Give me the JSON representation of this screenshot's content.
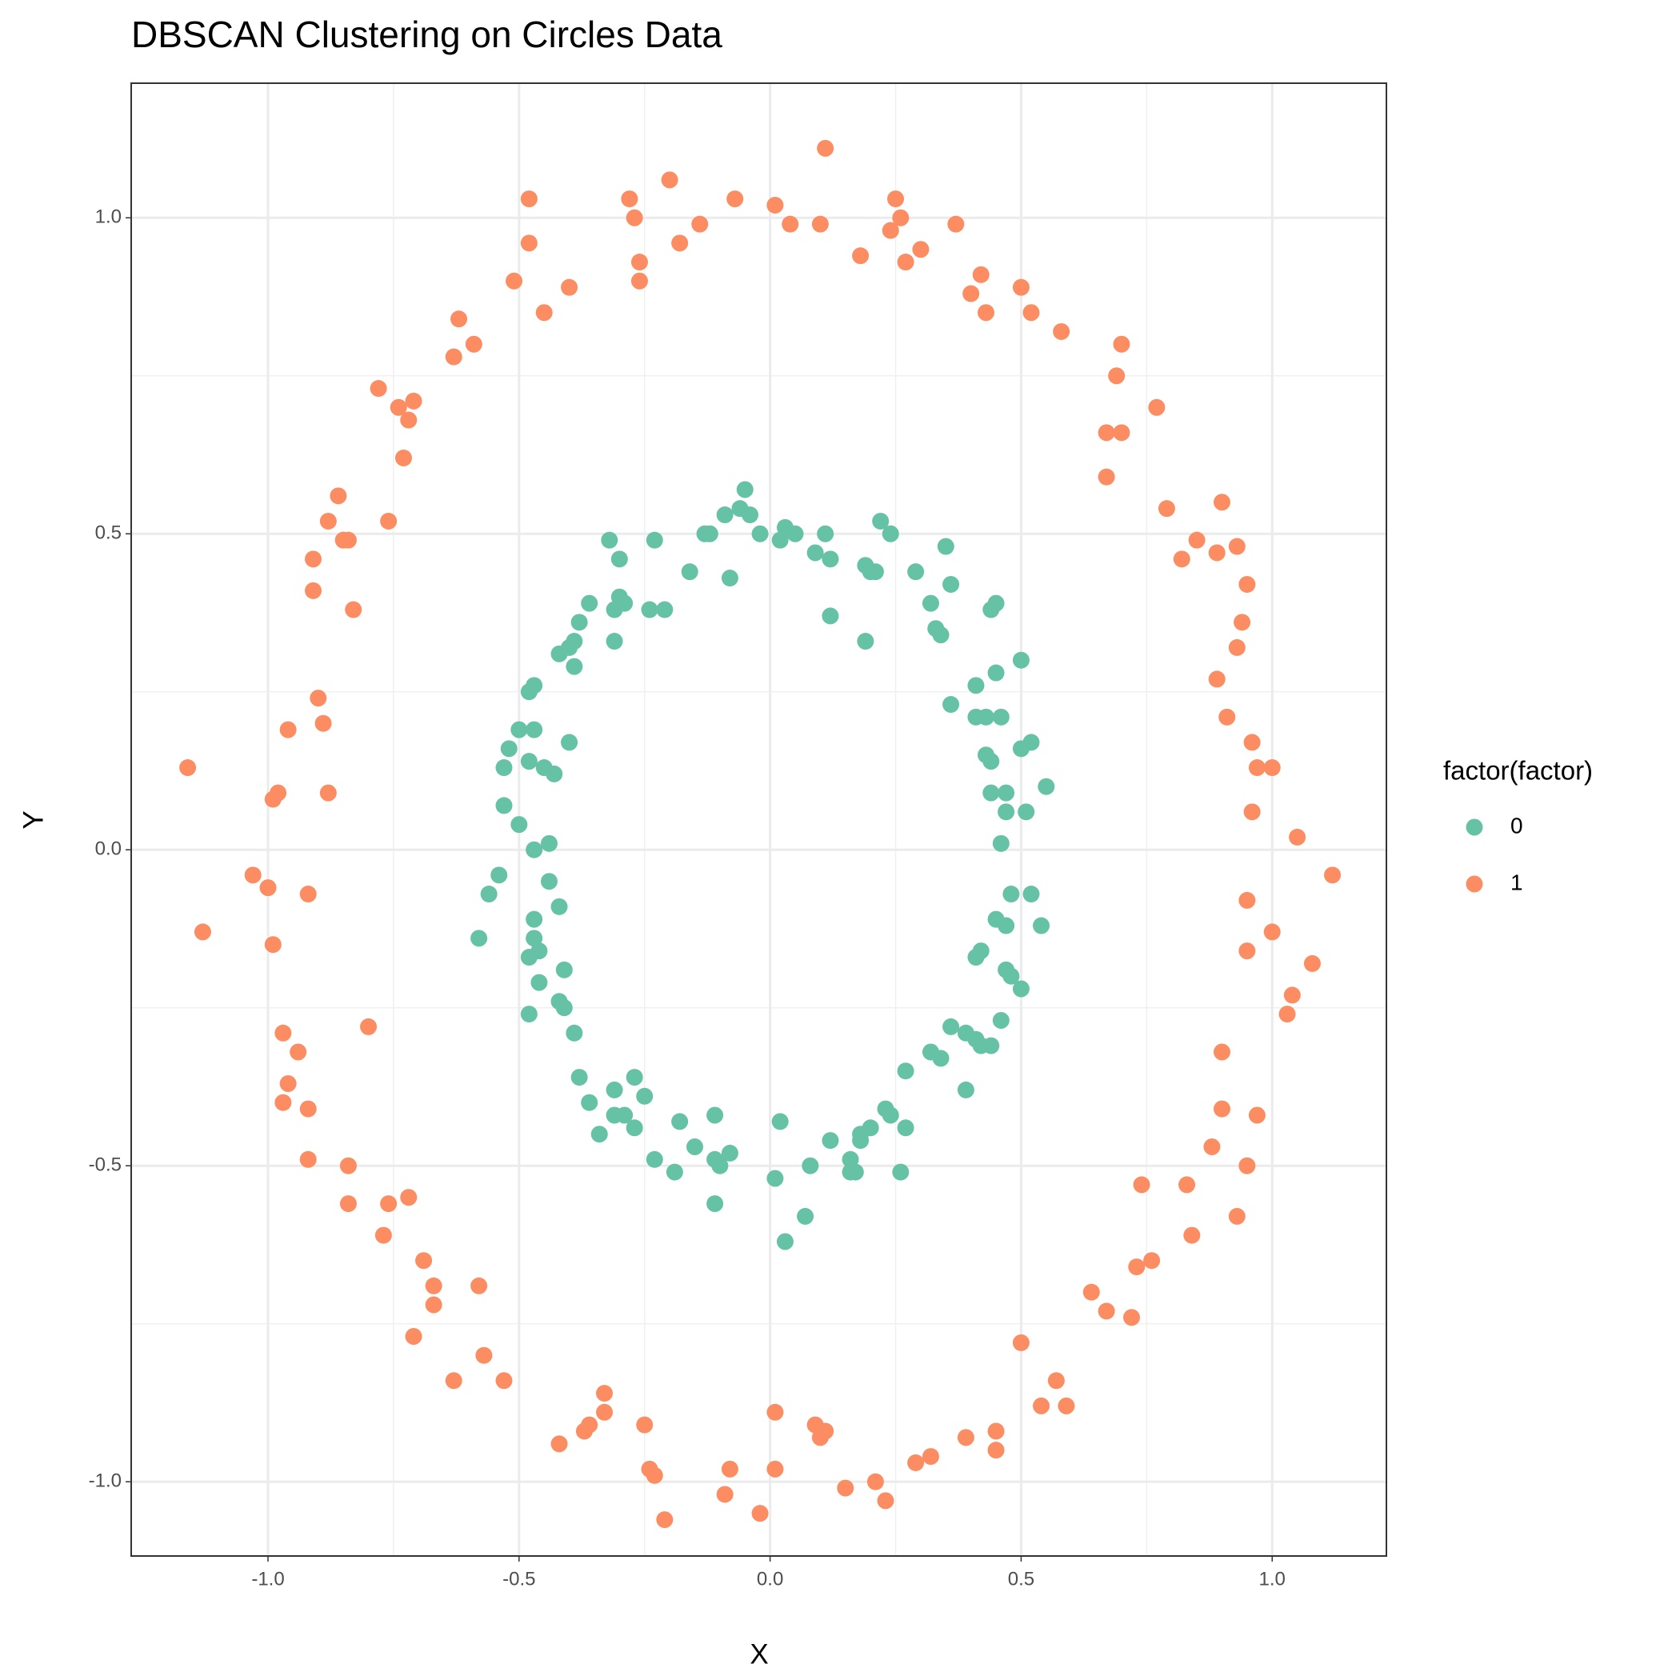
{
  "chart_data": {
    "type": "scatter",
    "title": "DBSCAN Clustering on Circles Data",
    "x_label": "X",
    "y_label": "Y",
    "legend_title": "factor(factor)",
    "legend_position": "right",
    "grid": true,
    "xlim": [
      -1.2725,
      1.2275
    ],
    "ylim": [
      -1.1175,
      1.213
    ],
    "xticks": [
      {
        "value": -1,
        "label": "-1.0"
      },
      -0.5,
      {
        "value": 0,
        "label": "0.0"
      },
      0.5,
      {
        "value": 1,
        "label": "1.0"
      }
    ],
    "yticks": [
      {
        "value": -1,
        "label": "-1.0"
      },
      -0.5,
      {
        "value": 0,
        "label": "0.0"
      },
      0.5,
      {
        "value": 1,
        "label": "1.0"
      }
    ],
    "series": [
      {
        "name": "0",
        "color": "#66c2a5",
        "x": [
          -0.05,
          -0.09,
          -0.06,
          -0.04,
          -0.02,
          0.03,
          0.02,
          0.05,
          0.11,
          0.09,
          0.12,
          0.22,
          0.24,
          0.19,
          0.2,
          0.21,
          0.29,
          0.35,
          0.36,
          0.32,
          0.33,
          0.34,
          0.44,
          0.45,
          0.19,
          0.12,
          -0.08,
          -0.16,
          -0.13,
          -0.12,
          -0.23,
          -0.32,
          -0.3,
          -0.29,
          -0.31,
          -0.3,
          -0.36,
          -0.38,
          -0.39,
          -0.4,
          -0.39,
          -0.42,
          -0.31,
          -0.24,
          -0.21,
          -0.47,
          -0.48,
          -0.5,
          -0.47,
          -0.4,
          -0.52,
          -0.53,
          -0.48,
          -0.45,
          -0.43,
          -0.53,
          -0.5,
          -0.44,
          -0.47,
          -0.44,
          -0.42,
          -0.54,
          -0.56,
          -0.58,
          -0.47,
          -0.47,
          -0.48,
          -0.46,
          -0.41,
          -0.46,
          -0.42,
          -0.41,
          -0.48,
          -0.39,
          -0.38,
          -0.36,
          -0.31,
          -0.27,
          -0.25,
          -0.31,
          -0.29,
          -0.34,
          -0.27,
          -0.23,
          -0.18,
          -0.19,
          -0.15,
          -0.11,
          -0.11,
          -0.1,
          -0.08,
          -0.11,
          0.01,
          0.02,
          0.03,
          0.07,
          0.08,
          0.12,
          0.16,
          0.16,
          0.17,
          0.18,
          0.2,
          0.18,
          0.23,
          0.24,
          0.27,
          0.26,
          0.27,
          0.32,
          0.34,
          0.36,
          0.39,
          0.41,
          0.42,
          0.44,
          0.46,
          0.39,
          0.41,
          0.42,
          0.47,
          0.48,
          0.5,
          0.45,
          0.47,
          0.54,
          0.48,
          0.52,
          0.46,
          0.51,
          0.47,
          0.55,
          0.47,
          0.44,
          0.52,
          0.5,
          0.43,
          0.44,
          0.46,
          0.43,
          0.41,
          0.41,
          0.36,
          0.45,
          0.5
        ],
        "y": [
          0.57,
          0.53,
          0.54,
          0.53,
          0.5,
          0.51,
          0.49,
          0.5,
          0.5,
          0.47,
          0.46,
          0.52,
          0.5,
          0.45,
          0.44,
          0.44,
          0.44,
          0.48,
          0.42,
          0.39,
          0.35,
          0.34,
          0.38,
          0.39,
          0.33,
          0.37,
          0.43,
          0.44,
          0.5,
          0.5,
          0.49,
          0.49,
          0.46,
          0.39,
          0.38,
          0.4,
          0.39,
          0.36,
          0.33,
          0.32,
          0.29,
          0.31,
          0.33,
          0.38,
          0.38,
          0.26,
          0.25,
          0.19,
          0.19,
          0.17,
          0.16,
          0.13,
          0.14,
          0.13,
          0.12,
          0.07,
          0.04,
          0.01,
          0.0,
          -0.05,
          -0.09,
          -0.04,
          -0.07,
          -0.14,
          -0.11,
          -0.14,
          -0.17,
          -0.16,
          -0.19,
          -0.21,
          -0.24,
          -0.25,
          -0.26,
          -0.29,
          -0.36,
          -0.4,
          -0.38,
          -0.36,
          -0.39,
          -0.42,
          -0.42,
          -0.45,
          -0.44,
          -0.49,
          -0.43,
          -0.51,
          -0.47,
          -0.42,
          -0.49,
          -0.5,
          -0.48,
          -0.56,
          -0.52,
          -0.43,
          -0.62,
          -0.58,
          -0.5,
          -0.46,
          -0.49,
          -0.51,
          -0.51,
          -0.45,
          -0.44,
          -0.46,
          -0.41,
          -0.42,
          -0.44,
          -0.51,
          -0.35,
          -0.32,
          -0.33,
          -0.28,
          -0.29,
          -0.3,
          -0.31,
          -0.31,
          -0.27,
          -0.38,
          -0.17,
          -0.16,
          -0.19,
          -0.2,
          -0.22,
          -0.11,
          -0.12,
          -0.12,
          -0.07,
          -0.07,
          0.01,
          0.06,
          0.06,
          0.1,
          0.09,
          0.09,
          0.17,
          0.16,
          0.15,
          0.14,
          0.21,
          0.21,
          0.21,
          0.26,
          0.23,
          0.28,
          0.3
        ]
      },
      {
        "name": "1",
        "color": "#fc8d62",
        "x": [
          0.11,
          -0.2,
          -0.48,
          -0.28,
          -0.07,
          0.01,
          0.25,
          -0.27,
          0.04,
          0.1,
          0.26,
          0.24,
          0.37,
          -0.48,
          -0.26,
          -0.18,
          -0.14,
          0.18,
          0.3,
          0.27,
          -0.26,
          -0.51,
          -0.4,
          -0.45,
          -0.62,
          -0.59,
          -0.63,
          0.42,
          0.4,
          0.5,
          0.43,
          0.52,
          0.58,
          0.7,
          0.69,
          0.7,
          0.67,
          0.77,
          0.67,
          -0.78,
          -0.71,
          -0.74,
          -0.72,
          -0.73,
          -0.76,
          -0.86,
          -0.88,
          -0.85,
          -0.84,
          -0.91,
          -0.91,
          -0.83,
          -0.9,
          -0.89,
          -0.96,
          -0.88,
          -0.98,
          -0.99,
          -1.16,
          -1.03,
          -1.0,
          -0.92,
          -1.13,
          -0.99,
          -0.8,
          -0.97,
          -0.94,
          -0.96,
          -0.97,
          -0.92,
          -0.92,
          -0.84,
          -0.84,
          -0.76,
          -0.72,
          -0.77,
          -0.69,
          -0.67,
          -0.67,
          -0.71,
          -0.58,
          -0.57,
          -0.53,
          -0.63,
          -0.33,
          -0.33,
          -0.36,
          -0.37,
          -0.42,
          -0.25,
          -0.24,
          -0.23,
          -0.21,
          -0.08,
          -0.09,
          -0.02,
          0.01,
          0.01,
          0.09,
          0.11,
          0.1,
          0.15,
          0.21,
          0.23,
          0.29,
          0.32,
          0.39,
          0.45,
          0.45,
          0.5,
          0.57,
          0.54,
          0.59,
          0.64,
          0.67,
          0.72,
          0.73,
          0.76,
          0.74,
          0.83,
          0.84,
          0.93,
          0.88,
          0.9,
          0.97,
          0.95,
          0.9,
          1.0,
          0.95,
          1.08,
          1.04,
          1.03,
          0.95,
          1.12,
          1.05,
          0.96,
          1.0,
          0.97,
          0.91,
          0.96,
          0.89,
          0.93,
          0.94,
          0.95,
          0.9,
          0.93,
          0.89,
          0.85,
          0.82,
          0.79
        ],
        "y": [
          1.11,
          1.06,
          1.03,
          1.03,
          1.03,
          1.02,
          1.03,
          1.0,
          0.99,
          0.99,
          1.0,
          0.98,
          0.99,
          0.96,
          0.93,
          0.96,
          0.99,
          0.94,
          0.95,
          0.93,
          0.9,
          0.9,
          0.89,
          0.85,
          0.84,
          0.8,
          0.78,
          0.91,
          0.88,
          0.89,
          0.85,
          0.85,
          0.82,
          0.8,
          0.75,
          0.66,
          0.66,
          0.7,
          0.59,
          0.73,
          0.71,
          0.7,
          0.68,
          0.62,
          0.52,
          0.56,
          0.52,
          0.49,
          0.49,
          0.46,
          0.41,
          0.38,
          0.24,
          0.2,
          0.19,
          0.09,
          0.09,
          0.08,
          0.13,
          -0.04,
          -0.06,
          -0.07,
          -0.13,
          -0.15,
          -0.28,
          -0.29,
          -0.32,
          -0.37,
          -0.4,
          -0.41,
          -0.49,
          -0.5,
          -0.56,
          -0.56,
          -0.55,
          -0.61,
          -0.65,
          -0.69,
          -0.72,
          -0.77,
          -0.69,
          -0.8,
          -0.84,
          -0.84,
          -0.86,
          -0.89,
          -0.91,
          -0.92,
          -0.94,
          -0.91,
          -0.98,
          -0.99,
          -1.06,
          -0.98,
          -1.02,
          -1.05,
          -0.89,
          -0.98,
          -0.91,
          -0.92,
          -0.93,
          -1.01,
          -1.0,
          -1.03,
          -0.97,
          -0.96,
          -0.93,
          -0.92,
          -0.95,
          -0.78,
          -0.84,
          -0.88,
          -0.88,
          -0.7,
          -0.73,
          -0.74,
          -0.66,
          -0.65,
          -0.53,
          -0.53,
          -0.61,
          -0.58,
          -0.47,
          -0.41,
          -0.42,
          -0.5,
          -0.32,
          -0.13,
          -0.16,
          -0.18,
          -0.23,
          -0.26,
          -0.08,
          -0.04,
          0.02,
          0.06,
          0.13,
          0.13,
          0.21,
          0.17,
          0.27,
          0.32,
          0.36,
          0.42,
          0.55,
          0.48,
          0.47,
          0.49,
          0.46,
          0.54
        ]
      }
    ]
  }
}
